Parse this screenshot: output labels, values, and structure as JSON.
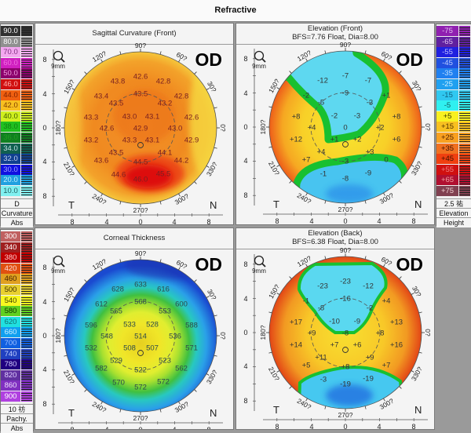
{
  "window": {
    "title": "Refractive"
  },
  "scales": {
    "curvature": {
      "entries": [
        {
          "v": "90.0",
          "c": "#303030",
          "t": "#fff"
        },
        {
          "v": "80.0",
          "c": "#909090",
          "t": "#fff"
        },
        {
          "v": "70.0",
          "c": "#f3a8f0",
          "t": "#803080"
        },
        {
          "v": "60.0",
          "c": "#d020c0",
          "t": "#f070e0"
        },
        {
          "v": "50.0",
          "c": "#8c006c",
          "t": "#f0a0e0"
        },
        {
          "v": "46.0",
          "c": "#d01010",
          "t": "#ffb0b0"
        },
        {
          "v": "44.0",
          "c": "#f06010",
          "t": "#802000"
        },
        {
          "v": "42.0",
          "c": "#f8c020",
          "t": "#804000"
        },
        {
          "v": "40.0",
          "c": "#d0f020",
          "t": "#406000"
        },
        {
          "v": "38.0",
          "c": "#20c020",
          "t": "#108010"
        },
        {
          "v": "36.0",
          "c": "#108020",
          "t": "#20a020"
        },
        {
          "v": "34.0",
          "c": "#106050",
          "t": "#c0e0e0"
        },
        {
          "v": "32.0",
          "c": "#104090",
          "t": "#c0d0f0"
        },
        {
          "v": "30.0",
          "c": "#1010e0",
          "t": "#a0a0ff"
        },
        {
          "v": "20.0",
          "c": "#20a0e0",
          "t": "#c0f0ff"
        },
        {
          "v": "10.0",
          "c": "#80f0f0",
          "t": "#206060"
        }
      ],
      "footer": [
        "D",
        "Curvature",
        "Abs"
      ]
    },
    "pachy": {
      "entries": [
        {
          "v": "300",
          "c": "#c06060",
          "t": "#fff"
        },
        {
          "v": "340",
          "c": "#a02020",
          "t": "#fff"
        },
        {
          "v": "380",
          "c": "#c00000",
          "t": "#fcc"
        },
        {
          "v": "420",
          "c": "#e05010",
          "t": "#fdd"
        },
        {
          "v": "460",
          "c": "#e0a020",
          "t": "#402000"
        },
        {
          "v": "500",
          "c": "#e8d030",
          "t": "#403000"
        },
        {
          "v": "540",
          "c": "#f8f820",
          "t": "#404000"
        },
        {
          "v": "580",
          "c": "#60d020",
          "t": "#103000"
        },
        {
          "v": "620",
          "c": "#20e0e0",
          "t": "#107070"
        },
        {
          "v": "660",
          "c": "#10a0f0",
          "t": "#d0f0ff"
        },
        {
          "v": "700",
          "c": "#1060e0",
          "t": "#a0c0ff"
        },
        {
          "v": "740",
          "c": "#2040c0",
          "t": "#c0d0ff"
        },
        {
          "v": "780",
          "c": "#200080",
          "t": "#d0d0ff"
        },
        {
          "v": "820",
          "c": "#6030a0",
          "t": "#e0d0ff"
        },
        {
          "v": "860",
          "c": "#8030c0",
          "t": "#f0e0ff"
        },
        {
          "v": "900",
          "c": "#b040e0",
          "t": "#fff"
        }
      ],
      "footer": [
        "10 祊",
        "Pachy.",
        "Abs"
      ]
    },
    "elevation": {
      "entries": [
        {
          "v": "-75",
          "c": "#9020b0",
          "t": "#e0c0f0"
        },
        {
          "v": "-65",
          "c": "#6020a0",
          "t": "#e0c0f0"
        },
        {
          "v": "-55",
          "c": "#2020e0",
          "t": "#c0c0ff"
        },
        {
          "v": "-45",
          "c": "#2050e0",
          "t": "#c0d0ff"
        },
        {
          "v": "-35",
          "c": "#2080f0",
          "t": "#c0e0ff"
        },
        {
          "v": "-25",
          "c": "#20a0f0",
          "t": "#d0f0ff"
        },
        {
          "v": "-15",
          "c": "#30c8f0",
          "t": "#106080"
        },
        {
          "v": "-5",
          "c": "#30f0f0",
          "t": "#106060"
        },
        {
          "v": "+5",
          "c": "#f8f020",
          "t": "#404000"
        },
        {
          "v": "+15",
          "c": "#f8c020",
          "t": "#503000"
        },
        {
          "v": "+25",
          "c": "#f8a020",
          "t": "#502000"
        },
        {
          "v": "+35",
          "c": "#f07020",
          "t": "#401000"
        },
        {
          "v": "+45",
          "c": "#f04010",
          "t": "#401000"
        },
        {
          "v": "+55",
          "c": "#d01010",
          "t": "#f08080"
        },
        {
          "v": "+65",
          "c": "#b01030",
          "t": "#f0a0a0"
        },
        {
          "v": "+75",
          "c": "#804050",
          "t": "#f0d0d0"
        }
      ],
      "footer": [
        "2.5 祐",
        "Elevation",
        "Height"
      ]
    }
  },
  "common": {
    "eye": "OD",
    "zoom_label": "9mm",
    "degree_labels": {
      "90": "90?",
      "120": "120?",
      "60": "60?",
      "150": "150?",
      "30": "30?",
      "180": "180?",
      "0": "0?",
      "210": "210?",
      "330": "330?",
      "240": "240?",
      "300": "300?",
      "270": "270?"
    },
    "axis_labels": [
      "8",
      "4",
      "0",
      "4",
      "8"
    ],
    "temporal": "T",
    "nasal": "N"
  },
  "maps": {
    "sagittal": {
      "title": "Sagittal Curvature (Front)",
      "subtitle": "",
      "values": [
        "42.6",
        "43.8",
        "42.8",
        "43.4",
        "43.5",
        "42.8",
        "43.5",
        "43.2",
        "43.3",
        "43.0",
        "43.1",
        "42.6",
        "42.6",
        "42.9",
        "43.0",
        "43.2",
        "43.3",
        "43.1",
        "42.9",
        "43.5",
        "44.1",
        "43.6",
        "44.5",
        "44.2",
        "44.6",
        "46.0",
        "45.5"
      ]
    },
    "elev_front": {
      "title": "Elevation (Front)",
      "subtitle": "BFS=7.76 Float, Dia=8.00",
      "values": [
        "-7",
        "-12",
        "-7",
        "-2",
        "-9",
        "+1",
        "-5",
        "-3",
        "+8",
        "-2",
        "-3",
        "+8",
        "+4",
        "0",
        "+2",
        "+12",
        "+1",
        "+2",
        "+6",
        "+4",
        "+3",
        "+7",
        "-3",
        "0",
        "-1",
        "-8",
        "-9"
      ]
    },
    "thickness": {
      "title": "Corneal Thickness",
      "subtitle": "",
      "values": [
        "633",
        "628",
        "616",
        "612",
        "568",
        "600",
        "565",
        "553",
        "596",
        "533",
        "528",
        "588",
        "548",
        "514",
        "536",
        "532",
        "508",
        "507",
        "571",
        "529",
        "523",
        "582",
        "522",
        "562",
        "570",
        "572",
        "572"
      ]
    },
    "elev_back": {
      "title": "Elevation (Back)",
      "subtitle": "BFS=6.38 Float, Dia=8.00",
      "values": [
        "-23",
        "-23",
        "-12",
        "-1",
        "-16",
        "+4",
        "-8",
        "-2",
        "+17",
        "-10",
        "-9",
        "+13",
        "+9",
        "-8",
        "+8",
        "+14",
        "+7",
        "+6",
        "+16",
        "+11",
        "+9",
        "+5",
        "+8",
        "+7",
        "-3",
        "-19",
        "-19"
      ]
    }
  }
}
